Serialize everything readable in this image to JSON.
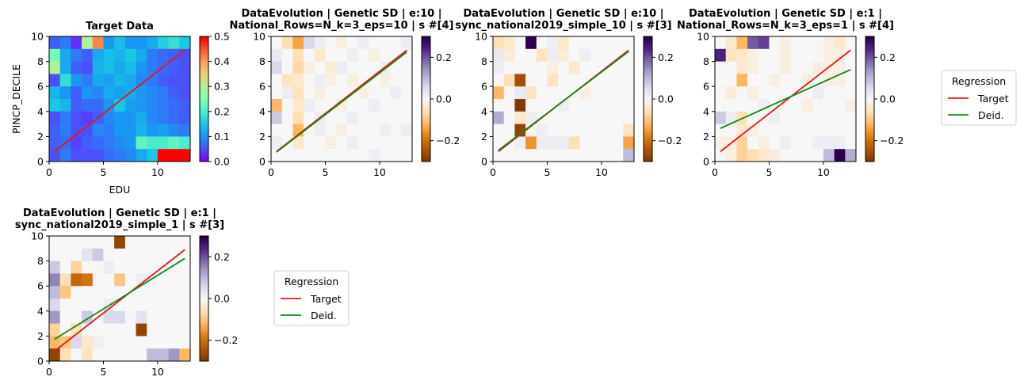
{
  "figure": {
    "colors": {
      "target": "#e8161b",
      "deid": "#138a15"
    }
  },
  "chart_data": [
    {
      "type": "heatmap",
      "title": "Target Data",
      "xlabel": "EDU",
      "ylabel": "PINCP_DECILE",
      "xlim": [
        0,
        13
      ],
      "ylim": [
        0,
        10
      ],
      "x_ticks": [
        "0",
        "5",
        "10"
      ],
      "y_ticks": [
        "0",
        "2",
        "4",
        "6",
        "8",
        "10"
      ],
      "colormap": "rainbow",
      "clim": [
        0,
        0.5
      ],
      "colorbar_ticks": [
        "0.0",
        "0.1",
        "0.2",
        "0.3",
        "0.4",
        "0.5"
      ],
      "grid_values": [
        [
          0.06,
          0.08,
          0.03,
          0.3,
          0.42,
          0.1,
          0.14,
          0.1,
          0.1,
          0.12,
          0.16,
          0.18,
          0.15
        ],
        [
          0.24,
          0.12,
          0.08,
          0.06,
          0.12,
          0.14,
          0.13,
          0.15,
          0.12,
          0.08,
          0.07,
          0.06,
          0.05
        ],
        [
          0.3,
          0.12,
          0.06,
          0.05,
          0.13,
          0.14,
          0.12,
          0.14,
          0.1,
          0.08,
          0.07,
          0.06,
          0.05
        ],
        [
          0.05,
          0.18,
          0.1,
          0.08,
          0.12,
          0.11,
          0.13,
          0.12,
          0.09,
          0.08,
          0.06,
          0.05,
          0.05
        ],
        [
          0.13,
          0.1,
          0.06,
          0.1,
          0.09,
          0.12,
          0.11,
          0.12,
          0.1,
          0.09,
          0.08,
          0.06,
          0.05
        ],
        [
          0.15,
          0.13,
          0.06,
          0.07,
          0.07,
          0.1,
          0.15,
          0.11,
          0.1,
          0.09,
          0.08,
          0.07,
          0.06
        ],
        [
          0.05,
          0.08,
          0.05,
          0.04,
          0.06,
          0.09,
          0.1,
          0.1,
          0.12,
          0.09,
          0.08,
          0.07,
          0.06
        ],
        [
          0.06,
          0.08,
          0.05,
          0.05,
          0.09,
          0.08,
          0.1,
          0.1,
          0.13,
          0.1,
          0.11,
          0.09,
          0.08
        ],
        [
          0.06,
          0.07,
          0.04,
          0.06,
          0.07,
          0.08,
          0.09,
          0.1,
          0.22,
          0.2,
          0.2,
          0.22,
          0.2
        ],
        [
          0.05,
          0.08,
          0.05,
          0.05,
          0.05,
          0.07,
          0.08,
          0.09,
          0.12,
          0.15,
          0.5,
          0.5,
          0.5
        ]
      ],
      "series": [
        {
          "name": "Target",
          "x": [
            0.5,
            12.5
          ],
          "y": [
            0.8,
            8.9
          ]
        }
      ]
    },
    {
      "type": "heatmap",
      "title": "DataEvolution | Genetic SD | e:10 |\nNational_Rows=N_k=3_eps=10 | s #[4]",
      "xlim": [
        0,
        13
      ],
      "ylim": [
        0,
        10
      ],
      "x_ticks": [
        "0",
        "5",
        "10"
      ],
      "y_ticks": [
        "0",
        "2",
        "4",
        "6",
        "8",
        "10"
      ],
      "colormap": "PuOr",
      "clim": [
        -0.3,
        0.3
      ],
      "colorbar_ticks": [
        "−0.2",
        "0.0",
        "0.2"
      ],
      "grid_values": [
        [
          0.0,
          -0.06,
          -0.14,
          0.06,
          0.02,
          0.0,
          -0.02,
          0.0,
          0.02,
          0.0,
          0.0,
          0.0,
          0.02
        ],
        [
          0.03,
          0.0,
          -0.06,
          0.0,
          -0.04,
          0.0,
          0.0,
          0.02,
          0.0,
          -0.02,
          0.0,
          0.0,
          0.0
        ],
        [
          0.06,
          0.0,
          -0.07,
          -0.02,
          0.0,
          -0.03,
          0.02,
          0.0,
          0.0,
          0.0,
          0.02,
          0.0,
          0.0
        ],
        [
          0.0,
          -0.05,
          -0.04,
          0.0,
          0.02,
          -0.02,
          0.0,
          -0.02,
          0.0,
          0.0,
          -0.02,
          0.0,
          0.0
        ],
        [
          0.0,
          0.02,
          -0.05,
          0.0,
          -0.02,
          0.0,
          0.0,
          0.0,
          -0.02,
          0.0,
          0.0,
          0.02,
          0.0
        ],
        [
          -0.12,
          0.0,
          -0.04,
          0.02,
          0.0,
          0.0,
          -0.02,
          0.0,
          0.0,
          0.02,
          0.0,
          0.0,
          0.0
        ],
        [
          0.08,
          0.0,
          -0.06,
          0.0,
          0.02,
          0.0,
          0.0,
          0.02,
          0.0,
          0.0,
          0.0,
          0.0,
          0.0
        ],
        [
          0.0,
          0.0,
          -0.12,
          0.0,
          0.02,
          0.0,
          -0.02,
          0.0,
          0.0,
          0.0,
          0.02,
          0.0,
          0.02
        ],
        [
          0.02,
          0.0,
          -0.04,
          0.0,
          0.0,
          -0.02,
          0.0,
          0.02,
          0.0,
          0.0,
          0.0,
          0.0,
          0.0
        ],
        [
          0.0,
          0.0,
          0.0,
          0.0,
          0.0,
          0.0,
          0.0,
          0.0,
          0.0,
          0.02,
          0.0,
          0.0,
          0.0
        ]
      ],
      "series": [
        {
          "name": "Target",
          "x": [
            0.5,
            12.5
          ],
          "y": [
            0.8,
            8.9
          ]
        },
        {
          "name": "Deid.",
          "x": [
            0.5,
            12.5
          ],
          "y": [
            0.75,
            8.75
          ]
        }
      ]
    },
    {
      "type": "heatmap",
      "title": "DataEvolution | Genetic SD | e:10 |\nsync_national2019_simple_10 | s #[3]",
      "xlim": [
        0,
        13
      ],
      "ylim": [
        0,
        10
      ],
      "x_ticks": [
        "0",
        "5",
        "10"
      ],
      "y_ticks": [
        "0",
        "2",
        "4",
        "6",
        "8",
        "10"
      ],
      "colormap": "PuOr",
      "clim": [
        -0.3,
        0.3
      ],
      "colorbar_ticks": [
        "−0.2",
        "0.0",
        "0.2"
      ],
      "grid_values": [
        [
          -0.06,
          -0.04,
          0.0,
          0.32,
          0.0,
          0.02,
          -0.04,
          0.0,
          0.0,
          0.0,
          0.0,
          0.0,
          0.0
        ],
        [
          0.03,
          -0.03,
          0.0,
          0.0,
          -0.05,
          0.02,
          -0.03,
          0.0,
          0.02,
          0.0,
          0.0,
          0.0,
          0.0
        ],
        [
          0.02,
          0.0,
          0.0,
          0.0,
          0.0,
          -0.02,
          0.0,
          -0.04,
          0.0,
          0.0,
          0.0,
          0.0,
          0.0
        ],
        [
          0.0,
          -0.06,
          -0.26,
          0.0,
          0.0,
          -0.05,
          0.0,
          0.0,
          0.0,
          0.0,
          0.0,
          0.0,
          0.0
        ],
        [
          -0.12,
          0.0,
          0.03,
          -0.05,
          0.0,
          0.0,
          0.0,
          0.0,
          -0.02,
          0.0,
          0.0,
          0.0,
          0.0
        ],
        [
          0.0,
          0.0,
          -0.3,
          0.0,
          0.0,
          0.0,
          0.02,
          0.0,
          0.0,
          0.0,
          0.0,
          0.0,
          0.0
        ],
        [
          0.12,
          0.0,
          -0.04,
          0.02,
          0.0,
          0.0,
          0.0,
          0.0,
          0.0,
          0.0,
          0.0,
          0.0,
          0.0
        ],
        [
          0.0,
          0.0,
          -0.28,
          0.0,
          0.02,
          0.0,
          0.0,
          0.0,
          0.0,
          0.0,
          0.0,
          0.0,
          -0.05
        ],
        [
          0.0,
          0.0,
          0.02,
          -0.16,
          0.02,
          0.02,
          0.02,
          -0.06,
          0.0,
          0.0,
          0.0,
          0.0,
          -0.14
        ],
        [
          0.0,
          0.0,
          0.0,
          0.0,
          0.0,
          0.0,
          0.0,
          0.0,
          0.0,
          0.0,
          0.0,
          0.0,
          0.1
        ]
      ],
      "series": [
        {
          "name": "Target",
          "x": [
            0.5,
            12.5
          ],
          "y": [
            0.8,
            8.9
          ]
        },
        {
          "name": "Deid.",
          "x": [
            0.5,
            12.5
          ],
          "y": [
            0.9,
            8.8
          ]
        }
      ]
    },
    {
      "type": "heatmap",
      "title": "DataEvolution | Genetic SD | e:1 |\nNational_Rows=N_k=3_eps=1 | s #[4]",
      "xlim": [
        0,
        13
      ],
      "ylim": [
        0,
        10
      ],
      "x_ticks": [
        "0",
        "5",
        "10"
      ],
      "y_ticks": [
        "0",
        "2",
        "4",
        "6",
        "8",
        "10"
      ],
      "colormap": "PuOr",
      "clim": [
        -0.3,
        0.3
      ],
      "colorbar_ticks": [
        "−0.2",
        "0.0",
        "0.2"
      ],
      "grid_values": [
        [
          0.0,
          -0.04,
          -0.12,
          0.2,
          0.22,
          0.0,
          -0.02,
          0.0,
          0.0,
          0.0,
          -0.02,
          -0.04,
          0.0
        ],
        [
          0.25,
          -0.05,
          -0.04,
          -0.02,
          0.0,
          0.0,
          -0.02,
          0.0,
          0.0,
          0.0,
          -0.02,
          -0.02,
          0.0
        ],
        [
          0.0,
          0.0,
          -0.04,
          -0.02,
          0.0,
          0.0,
          -0.02,
          0.0,
          0.0,
          -0.02,
          -0.02,
          -0.02,
          0.0
        ],
        [
          0.0,
          0.0,
          -0.12,
          0.0,
          0.0,
          -0.02,
          0.0,
          0.0,
          -0.02,
          0.0,
          -0.02,
          -0.02,
          0.0
        ],
        [
          0.0,
          -0.03,
          0.0,
          -0.02,
          0.0,
          0.0,
          0.0,
          0.0,
          0.0,
          0.02,
          0.0,
          0.0,
          0.0
        ],
        [
          0.0,
          0.0,
          0.0,
          0.0,
          0.02,
          0.0,
          0.0,
          0.0,
          -0.02,
          0.0,
          0.0,
          0.0,
          -0.02
        ],
        [
          0.08,
          0.02,
          -0.06,
          0.0,
          0.0,
          0.02,
          0.0,
          0.0,
          0.0,
          0.0,
          0.0,
          0.0,
          0.0
        ],
        [
          0.0,
          0.0,
          -0.04,
          -0.02,
          0.0,
          0.0,
          0.0,
          0.0,
          0.0,
          0.0,
          0.0,
          0.0,
          0.0
        ],
        [
          -0.02,
          -0.02,
          -0.08,
          0.0,
          -0.02,
          0.0,
          0.02,
          0.0,
          0.0,
          0.02,
          0.02,
          0.02,
          0.0
        ],
        [
          0.0,
          -0.02,
          -0.08,
          -0.06,
          -0.04,
          -0.02,
          0.0,
          0.0,
          0.0,
          0.0,
          0.1,
          0.3,
          0.12
        ]
      ],
      "series": [
        {
          "name": "Target",
          "x": [
            0.5,
            12.5
          ],
          "y": [
            0.8,
            8.9
          ]
        },
        {
          "name": "Deid.",
          "x": [
            0.5,
            12.5
          ],
          "y": [
            2.65,
            7.35
          ]
        }
      ]
    },
    {
      "type": "heatmap",
      "title": "DataEvolution | Genetic SD | e:1 |\nsync_national2019_simple_1 | s #[3]",
      "xlim": [
        0,
        13
      ],
      "ylim": [
        0,
        10
      ],
      "x_ticks": [
        "0",
        "5",
        "10"
      ],
      "y_ticks": [
        "0",
        "2",
        "4",
        "6",
        "8",
        "10"
      ],
      "colormap": "PuOr",
      "clim": [
        -0.3,
        0.3
      ],
      "colorbar_ticks": [
        "−0.2",
        "0.0",
        "0.2"
      ],
      "grid_values": [
        [
          0.0,
          0.0,
          0.0,
          0.0,
          0.0,
          0.0,
          -0.28,
          0.0,
          0.0,
          0.0,
          0.0,
          0.0,
          0.0
        ],
        [
          0.0,
          0.0,
          0.0,
          0.04,
          0.08,
          0.0,
          0.0,
          0.0,
          0.0,
          0.0,
          0.0,
          0.0,
          0.0
        ],
        [
          0.08,
          0.0,
          -0.08,
          0.0,
          0.0,
          0.02,
          0.0,
          0.0,
          0.0,
          0.0,
          0.0,
          0.0,
          0.0
        ],
        [
          0.16,
          -0.06,
          -0.22,
          -0.2,
          0.0,
          0.0,
          -0.1,
          0.0,
          0.02,
          0.0,
          0.0,
          0.0,
          0.0
        ],
        [
          0.1,
          -0.1,
          0.0,
          0.0,
          0.0,
          0.0,
          0.0,
          0.0,
          0.0,
          0.0,
          0.0,
          0.0,
          0.0
        ],
        [
          0.06,
          0.0,
          0.0,
          0.0,
          0.0,
          0.02,
          0.0,
          0.0,
          0.0,
          0.0,
          0.0,
          0.0,
          0.0
        ],
        [
          0.14,
          0.0,
          0.0,
          0.08,
          0.0,
          0.06,
          0.06,
          0.0,
          0.04,
          0.0,
          0.0,
          0.0,
          0.0
        ],
        [
          -0.08,
          0.0,
          -0.06,
          0.0,
          0.0,
          0.0,
          0.0,
          0.0,
          -0.28,
          0.0,
          0.0,
          0.0,
          0.0
        ],
        [
          -0.12,
          -0.1,
          0.06,
          -0.04,
          0.02,
          0.0,
          0.0,
          0.0,
          0.0,
          0.0,
          0.0,
          0.0,
          0.0
        ],
        [
          -0.28,
          -0.06,
          0.0,
          -0.05,
          0.0,
          0.0,
          0.0,
          0.0,
          0.0,
          0.1,
          0.1,
          0.14,
          -0.12
        ]
      ],
      "series": [
        {
          "name": "Target",
          "x": [
            0.5,
            12.5
          ],
          "y": [
            0.8,
            8.9
          ]
        },
        {
          "name": "Deid.",
          "x": [
            0.5,
            12.5
          ],
          "y": [
            1.75,
            8.2
          ]
        }
      ]
    }
  ],
  "legends": [
    {
      "title": "Regression",
      "entries": [
        "Target",
        "Deid."
      ]
    },
    {
      "title": "Regression",
      "entries": [
        "Target",
        "Deid."
      ]
    }
  ]
}
